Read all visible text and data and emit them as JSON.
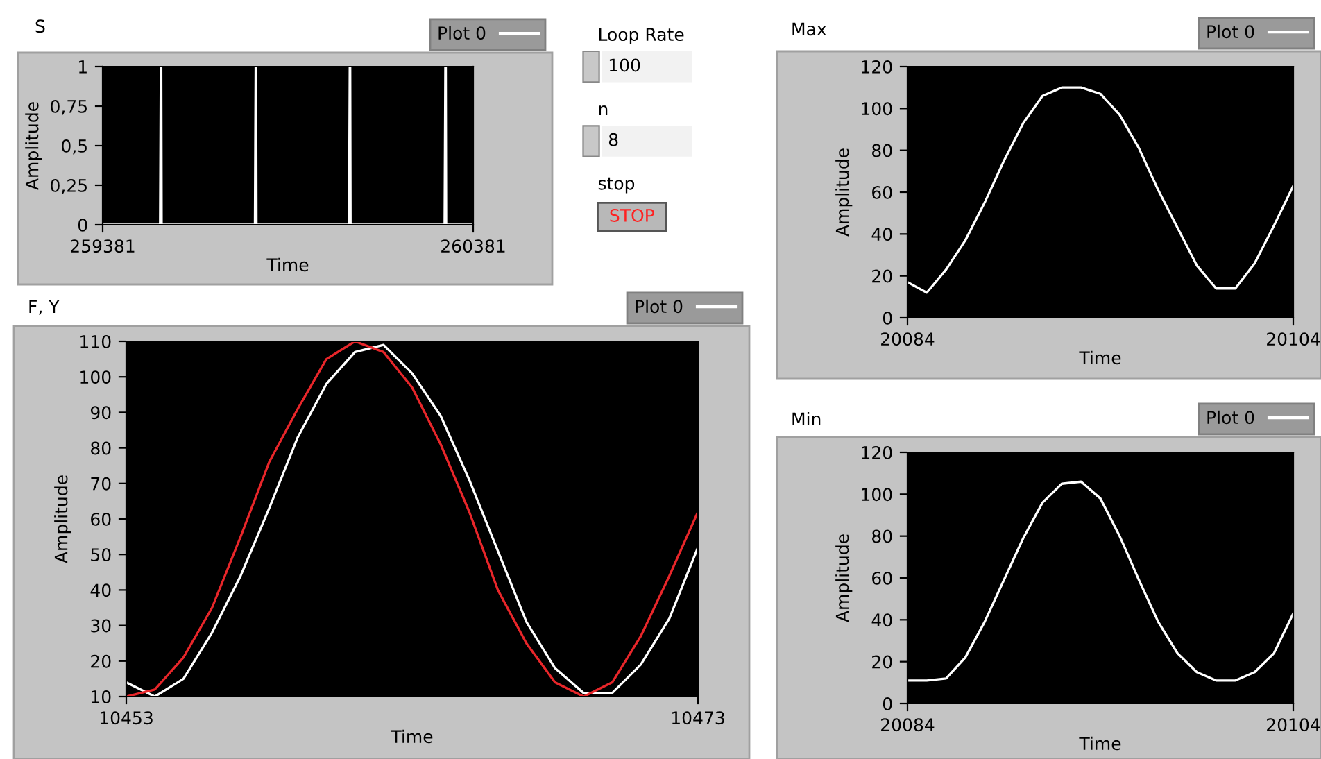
{
  "chart_data": [
    {
      "type": "line",
      "title": "S",
      "xlabel": "Time",
      "ylabel": "Amplitude",
      "legend": "top right",
      "grid": false,
      "xlim": [
        259381,
        260381
      ],
      "ylim": [
        0,
        1
      ],
      "xticks": [
        259381,
        260381
      ],
      "yticks": [
        0,
        {
          "value": 0.25,
          "label": "0,25"
        },
        {
          "value": 0.5,
          "label": "0,5"
        },
        {
          "value": 0.75,
          "label": "0,75"
        },
        1
      ],
      "series": [
        {
          "name": "Plot 0",
          "color": "#ffffff",
          "x": [
            259381,
            259536,
            259537,
            259538,
            259539,
            259540,
            259792,
            259793,
            259794,
            259795,
            259796,
            260046,
            260047,
            260048,
            260049,
            260050,
            260304,
            260305,
            260306,
            260307,
            260308,
            260381
          ],
          "values": [
            0,
            0,
            0.5,
            1,
            1,
            0,
            0,
            0.5,
            1,
            1,
            0,
            0,
            0.5,
            1,
            1,
            0,
            0,
            0.5,
            1,
            1,
            0,
            0
          ]
        }
      ]
    },
    {
      "type": "other",
      "annotations": [
        "Loop Rate",
        "100",
        "n",
        "8",
        "stop",
        "STOP"
      ]
    },
    {
      "type": "line",
      "title": "Max",
      "xlabel": "Time",
      "ylabel": "Amplitude",
      "legend": "top right",
      "grid": false,
      "xlim": [
        20084,
        20104
      ],
      "ylim": [
        0,
        120
      ],
      "xticks": [
        20084,
        20104
      ],
      "yticks": [
        0,
        20,
        40,
        60,
        80,
        100,
        120
      ],
      "series": [
        {
          "name": "Plot 0",
          "color": "#ffffff",
          "x": [
            20084,
            20085,
            20086,
            20087,
            20088,
            20089,
            20090,
            20091,
            20092,
            20093,
            20094,
            20095,
            20096,
            20097,
            20098,
            20099,
            20100,
            20101,
            20102,
            20103,
            20104
          ],
          "values": [
            17,
            12,
            23,
            37,
            55,
            75,
            93,
            106,
            110,
            110,
            107,
            97,
            81,
            61,
            43,
            25,
            14,
            14,
            26,
            44,
            63
          ]
        }
      ]
    },
    {
      "type": "line",
      "title": "F, Y",
      "xlabel": "Time",
      "ylabel": "Amplitude",
      "legend": "top right",
      "grid": false,
      "xlim": [
        10453,
        10473
      ],
      "ylim": [
        10,
        110
      ],
      "xticks": [
        10453,
        10473
      ],
      "yticks": [
        10,
        20,
        30,
        40,
        50,
        60,
        70,
        80,
        90,
        100,
        110
      ],
      "series": [
        {
          "name": "Plot 0",
          "color": "#ffffff",
          "x": [
            10453,
            10454,
            10455,
            10456,
            10457,
            10458,
            10459,
            10460,
            10461,
            10462,
            10463,
            10464,
            10465,
            10466,
            10467,
            10468,
            10469,
            10470,
            10471,
            10472,
            10473
          ],
          "values": [
            14,
            10,
            15,
            28,
            44,
            63,
            83,
            98,
            107,
            109,
            101,
            89,
            71,
            51,
            31,
            18,
            11,
            11,
            19,
            32,
            52
          ]
        },
        {
          "color": "#e8262a",
          "x": [
            10453,
            10454,
            10455,
            10456,
            10457,
            10458,
            10459,
            10460,
            10461,
            10462,
            10463,
            10464,
            10465,
            10466,
            10467,
            10468,
            10469,
            10470,
            10471,
            10472,
            10473
          ],
          "values": [
            10,
            12,
            21,
            35,
            55,
            76,
            91,
            105,
            110,
            107,
            97,
            81,
            62,
            40,
            25,
            14,
            10,
            14,
            27,
            44,
            62
          ]
        }
      ]
    },
    {
      "type": "line",
      "title": "Min",
      "xlabel": "Time",
      "ylabel": "Amplitude",
      "legend": "top right",
      "grid": false,
      "xlim": [
        20084,
        20104
      ],
      "ylim": [
        0,
        120
      ],
      "xticks": [
        20084,
        20104
      ],
      "yticks": [
        0,
        20,
        40,
        60,
        80,
        100,
        120
      ],
      "series": [
        {
          "name": "Plot 0",
          "color": "#ffffff",
          "x": [
            20084,
            20085,
            20086,
            20087,
            20088,
            20089,
            20090,
            20091,
            20092,
            20093,
            20094,
            20095,
            20096,
            20097,
            20098,
            20099,
            20100,
            20101,
            20102,
            20103,
            20104
          ],
          "values": [
            11,
            11,
            12,
            22,
            39,
            59,
            79,
            96,
            105,
            106,
            98,
            80,
            59,
            39,
            24,
            15,
            11,
            11,
            15,
            24,
            43
          ]
        }
      ]
    }
  ]
}
